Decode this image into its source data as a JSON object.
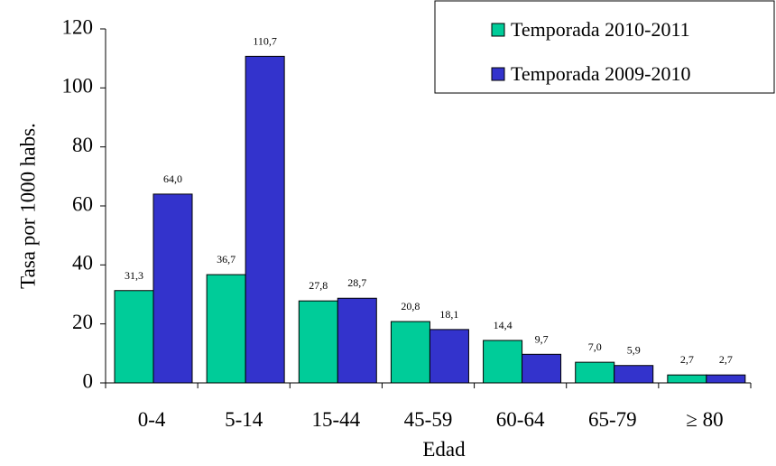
{
  "chart_data": {
    "type": "bar",
    "title": "",
    "xlabel": "Edad",
    "ylabel": "Tasa por 1000 habs.",
    "ylim": [
      0,
      120
    ],
    "yticks": [
      "0",
      "20",
      "40",
      "60",
      "80",
      "100",
      "120"
    ],
    "categories": [
      "0-4",
      "5-14",
      "15-44",
      "45-59",
      "60-64",
      "65-79",
      "≥ 80"
    ],
    "series": [
      {
        "name": "Temporada 2010-2011",
        "color": "#00cc99",
        "values": [
          31.3,
          36.7,
          27.8,
          20.8,
          14.4,
          7.0,
          2.7
        ],
        "labels": [
          "31,3",
          "36,7",
          "27,8",
          "20,8",
          "14,4",
          "7,0",
          "2,7"
        ]
      },
      {
        "name": "Temporada 2009-2010",
        "color": "#3333cc",
        "values": [
          64.0,
          110.7,
          28.7,
          18.1,
          9.7,
          5.9,
          2.7
        ],
        "labels": [
          "64,0",
          "110,7",
          "28,7",
          "18,1",
          "9,7",
          "5,9",
          "2,7"
        ]
      }
    ],
    "grid": false,
    "legend": {
      "position": "top-right",
      "entries": [
        "Temporada 2010-2011",
        "Temporada 2009-2010"
      ]
    }
  }
}
